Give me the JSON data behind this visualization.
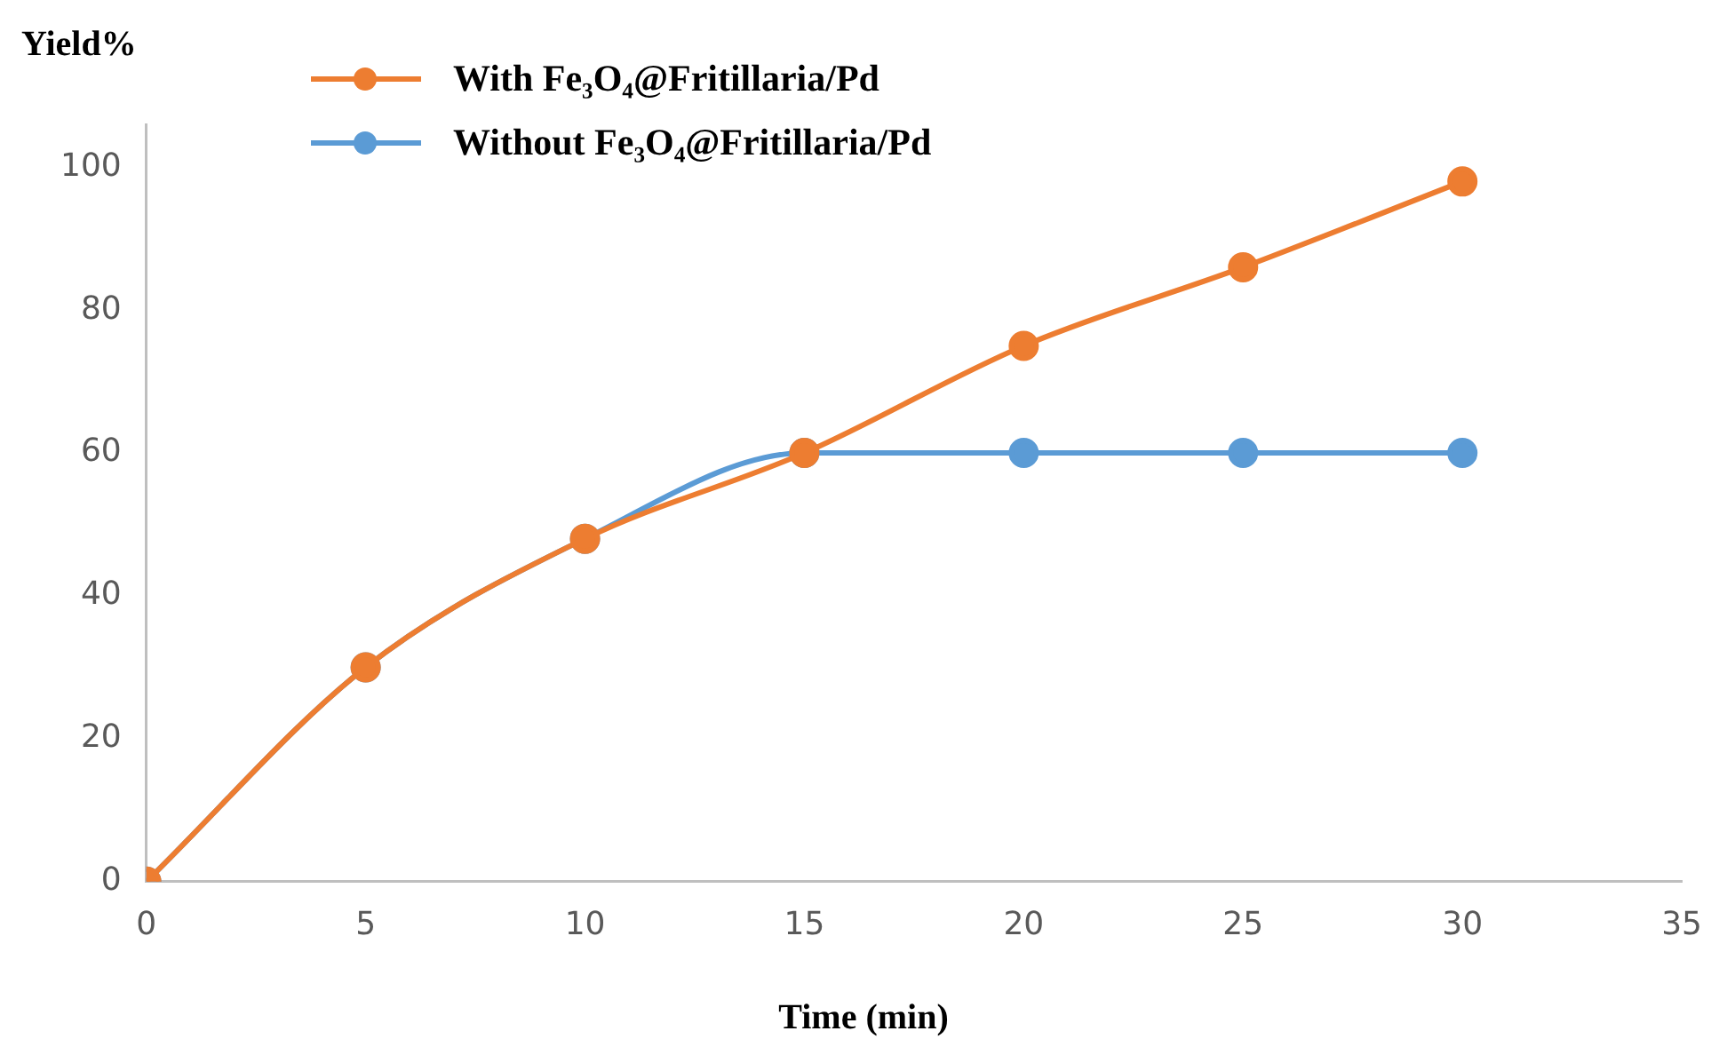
{
  "chart_data": {
    "type": "line",
    "xlabel": "Time (min)",
    "ylabel": "Yield%",
    "x": [
      0,
      5,
      10,
      15,
      20,
      25,
      30
    ],
    "series": [
      {
        "name": "With Fe₃O₄@Fritillaria/Pd",
        "color": "#ed7d31",
        "values": [
          0,
          30,
          48,
          60,
          75,
          86,
          98
        ]
      },
      {
        "name": "Without Fe₃O₄@Fritillaria/Pd",
        "color": "#5b9bd5",
        "values": [
          0,
          30,
          48,
          60,
          60,
          60,
          60
        ]
      }
    ],
    "xlim": [
      0,
      35
    ],
    "xticks": [
      0,
      5,
      10,
      15,
      20,
      25,
      30,
      35
    ],
    "ylim": [
      0,
      106
    ],
    "yticks": [
      0,
      20,
      40,
      60,
      80,
      100
    ],
    "grid": false,
    "legend": "top",
    "marker": "circle",
    "line_style": "solid"
  }
}
